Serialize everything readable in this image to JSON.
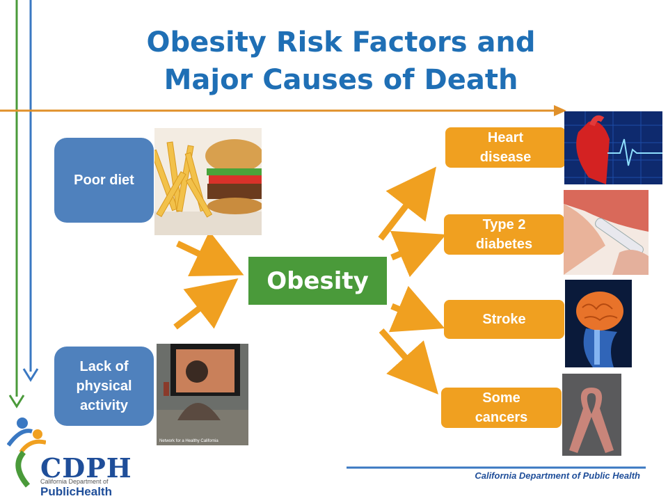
{
  "title": [
    "Obesity Risk Factors and",
    "Major Causes of Death"
  ],
  "causes": [
    {
      "label": "Poor diet"
    },
    {
      "label": "Lack of physical activity"
    }
  ],
  "center": "Obesity",
  "outcomes": [
    {
      "label": "Heart disease"
    },
    {
      "label": "Type 2 diabetes"
    },
    {
      "label": "Stroke"
    },
    {
      "label": "Some cancers"
    }
  ],
  "photo_caption": "Network for a Healthy California",
  "footer": "California Department of Public Health",
  "logo": {
    "name": "CDPH",
    "subtitle": "California Department of",
    "wordmark": "PublicHealth"
  },
  "colors": {
    "title": "#1f6fb5",
    "cause": "#4f81bd",
    "outcome": "#f0a020",
    "center": "#4a9a3a",
    "arrow": "#f0a020"
  }
}
